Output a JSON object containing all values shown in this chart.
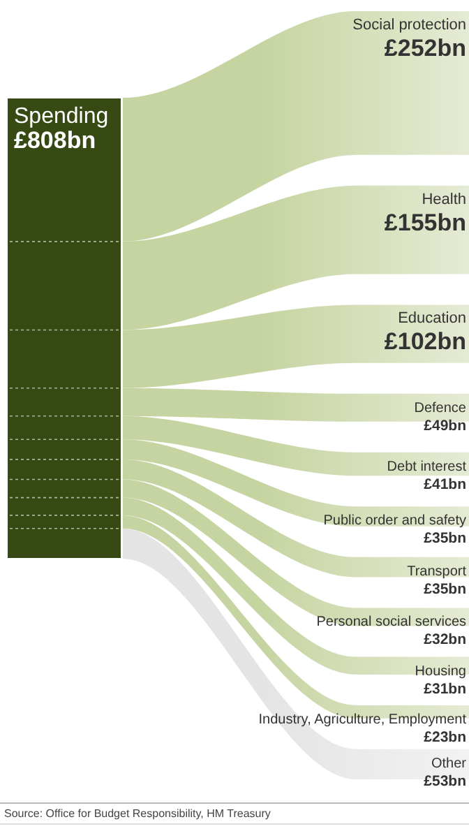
{
  "chart_data": {
    "type": "other",
    "title": "Spending",
    "subtitle": "£808bn",
    "color": "#384a13",
    "categories": [
      "Social protection",
      "Health",
      "Education",
      "Defence",
      "Debt interest",
      "Public order and safety",
      "Transport",
      "Personal social services",
      "Housing",
      "Industry, Agriculture, Employment",
      "Other"
    ],
    "values": [
      252,
      155,
      102,
      49,
      41,
      35,
      35,
      32,
      31,
      23,
      53
    ],
    "value_labels": [
      "£252bn",
      "£155bn",
      "£102bn",
      "£49bn",
      "£41bn",
      "£35bn",
      "£35bn",
      "£32bn",
      "£31bn",
      "£23bn",
      "£53bn"
    ],
    "colors": [
      "#c6d4a1",
      "#c6d4a1",
      "#c6d4a1",
      "#c6d4a1",
      "#c6d4a1",
      "#c6d4a1",
      "#c6d4a1",
      "#c6d4a1",
      "#c6d4a1",
      "#c6d4a1",
      "#e4e4e4"
    ],
    "annotations": [
      "Source: Office for Budget Responsibility, HM Treasury"
    ]
  }
}
